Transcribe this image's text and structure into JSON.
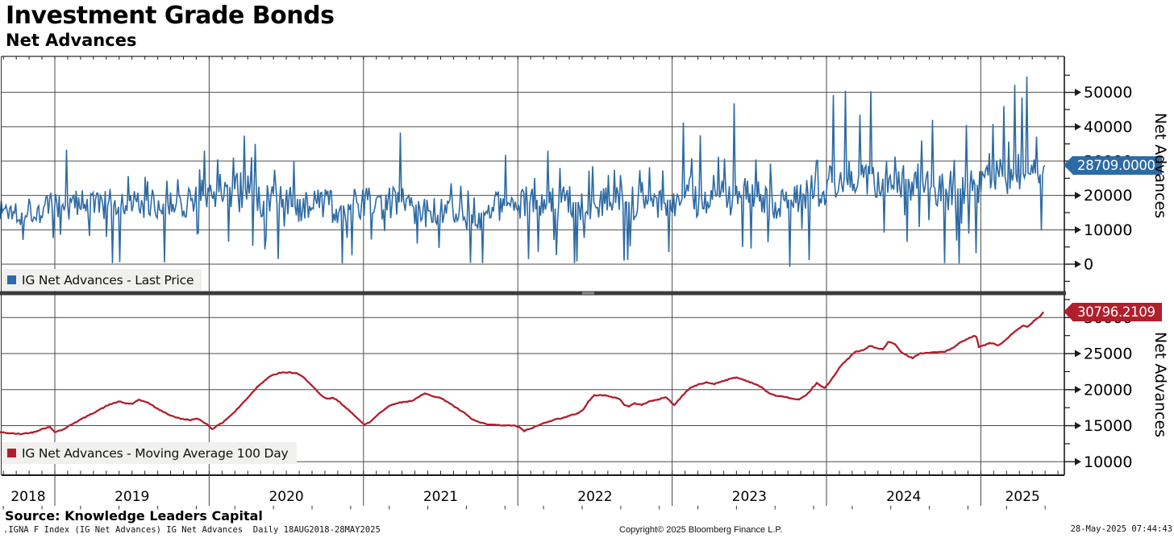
{
  "header": {
    "title": "Investment Grade Bonds",
    "subtitle": "Net Advances"
  },
  "footer": {
    "source": "Source: Knowledge Leaders Capital",
    "index_info": ".IGNA F Index (IG Net Advances) IG Net Advances  Daily 18AUG2018-28MAY2025",
    "copyright": "Copyright© 2025 Bloomberg Finance L.P.",
    "timestamp": "28-May-2025 07:44:43"
  },
  "colors": {
    "price": "#2d6ba5",
    "ma": "#b01f2c",
    "grid": "#4b4b4b",
    "axis": "#1a1a1a",
    "legend_bg": "#f0f0ee",
    "separator": "#3b3b3b",
    "handle": "#8a8a8a"
  },
  "x_axis": {
    "years": [
      "2018",
      "2019",
      "2020",
      "2021",
      "2022",
      "2023",
      "2024",
      "2025"
    ]
  },
  "chart_data": [
    {
      "type": "line",
      "panel": "top",
      "name": "IG Net Advances - Last Price",
      "legend": "IG Net Advances - Last Price",
      "axis_title": "Net Advances",
      "last_value": 28709.0,
      "last_label": "28709.0000",
      "ylim": [
        -7700,
        60500
      ],
      "y_major_ticks": [
        0,
        10000,
        20000,
        30000,
        40000,
        50000
      ],
      "y_major_labels": [
        "0",
        "10000",
        "20000",
        "30000",
        "40000",
        "50000"
      ],
      "y_minor_ticks": [
        -5000,
        5000,
        15000,
        25000,
        35000,
        45000,
        55000
      ],
      "seed": 1337,
      "envelope": [
        [
          0,
          15800,
          4200
        ],
        [
          30,
          15600,
          4600
        ],
        [
          68,
          16600,
          4600
        ],
        [
          85,
          17200,
          5600
        ],
        [
          120,
          17600,
          4600
        ],
        [
          150,
          16600,
          5200
        ],
        [
          185,
          17600,
          4200
        ],
        [
          215,
          17600,
          4600
        ],
        [
          240,
          18800,
          5200
        ],
        [
          262,
          20500,
          5600
        ],
        [
          285,
          21800,
          6200
        ],
        [
          308,
          21800,
          7600
        ],
        [
          330,
          19500,
          6200
        ],
        [
          352,
          16500,
          6000
        ],
        [
          385,
          17200,
          5200
        ],
        [
          415,
          16800,
          5200
        ],
        [
          452,
          17800,
          4600
        ],
        [
          497,
          18000,
          5200
        ],
        [
          522,
          15800,
          4800
        ],
        [
          548,
          14200,
          4800
        ],
        [
          575,
          14200,
          5200
        ],
        [
          603,
          15200,
          5200
        ],
        [
          628,
          17000,
          5600
        ],
        [
          660,
          17600,
          5600
        ],
        [
          690,
          17800,
          6000
        ],
        [
          730,
          18200,
          5200
        ],
        [
          765,
          17800,
          5600
        ],
        [
          800,
          18600,
          5600
        ],
        [
          835,
          18800,
          5200
        ],
        [
          855,
          19400,
          6200
        ],
        [
          880,
          19800,
          6400
        ],
        [
          915,
          20200,
          6200
        ],
        [
          945,
          19200,
          5600
        ],
        [
          980,
          18800,
          6000
        ],
        [
          1008,
          20800,
          5600
        ],
        [
          1025,
          22800,
          6200
        ],
        [
          1040,
          24200,
          6600
        ],
        [
          1055,
          25600,
          6200
        ],
        [
          1080,
          26200,
          6200
        ],
        [
          1097,
          24800,
          6200
        ],
        [
          1112,
          25600,
          5800
        ],
        [
          1128,
          24600,
          6000
        ],
        [
          1145,
          23600,
          5800
        ],
        [
          1160,
          22400,
          6000
        ],
        [
          1180,
          21600,
          6200
        ],
        [
          1205,
          22800,
          5800
        ],
        [
          1220,
          23600,
          5800
        ],
        [
          1238,
          25000,
          5600
        ],
        [
          1258,
          26200,
          6200
        ],
        [
          1275,
          26600,
          6200
        ],
        [
          1296,
          26000,
          6000
        ]
      ],
      "spikes": [
        [
          83,
          33300
        ],
        [
          140,
          300
        ],
        [
          148,
          600
        ],
        [
          204,
          500
        ],
        [
          253,
          33000
        ],
        [
          270,
          30500
        ],
        [
          290,
          31000
        ],
        [
          303,
          37400
        ],
        [
          317,
          35000
        ],
        [
          345,
          1500
        ],
        [
          365,
          30000
        ],
        [
          425,
          200
        ],
        [
          437,
          2600
        ],
        [
          497,
          38300
        ],
        [
          545,
          4700
        ],
        [
          583,
          400
        ],
        [
          598,
          300
        ],
        [
          627,
          31800
        ],
        [
          656,
          1500
        ],
        [
          680,
          33000
        ],
        [
          695,
          28000
        ],
        [
          712,
          300
        ],
        [
          716,
          800
        ],
        [
          735,
          28500
        ],
        [
          762,
          27500
        ],
        [
          774,
          1000
        ],
        [
          778,
          1200
        ],
        [
          805,
          28200
        ],
        [
          830,
          3500
        ],
        [
          848,
          41200
        ],
        [
          868,
          37500
        ],
        [
          911,
          46800
        ],
        [
          938,
          30500
        ],
        [
          980,
          -700
        ],
        [
          1004,
          1200
        ],
        [
          1034,
          49200
        ],
        [
          1049,
          50500
        ],
        [
          1066,
          43500
        ],
        [
          1080,
          50300
        ],
        [
          1096,
          9200
        ],
        [
          1125,
          6500
        ],
        [
          1143,
          36000
        ],
        [
          1157,
          42000
        ],
        [
          1172,
          300
        ],
        [
          1189,
          200
        ],
        [
          1199,
          40500
        ],
        [
          1211,
          3200
        ],
        [
          1232,
          40800
        ],
        [
          1245,
          46000
        ],
        [
          1259,
          52200
        ],
        [
          1268,
          48500
        ],
        [
          1274,
          54600
        ],
        [
          1283,
          30500
        ],
        [
          1291,
          9800
        ]
      ]
    },
    {
      "type": "line",
      "panel": "bottom",
      "name": "IG Net Advances - Moving Average 100 Day",
      "legend": "IG Net Advances - Moving Average 100 Day",
      "axis_title": "Net Advances",
      "last_value": 30796.2109,
      "last_label": "30796.2109",
      "ylim": [
        8100,
        33000
      ],
      "y_major_ticks": [
        10000,
        15000,
        20000,
        25000,
        30000
      ],
      "y_major_labels": [
        "10000",
        "15000",
        "20000",
        "25000",
        "30000"
      ],
      "y_minor_ticks": [
        12500,
        17500,
        22500,
        27500,
        32500
      ],
      "seed": 42,
      "points": [
        [
          0,
          14100
        ],
        [
          12,
          13950
        ],
        [
          25,
          13850
        ],
        [
          40,
          14050
        ],
        [
          55,
          14650
        ],
        [
          62,
          14800
        ],
        [
          68,
          14150
        ],
        [
          78,
          14450
        ],
        [
          92,
          15400
        ],
        [
          108,
          16300
        ],
        [
          122,
          17150
        ],
        [
          136,
          17950
        ],
        [
          148,
          18350
        ],
        [
          156,
          18100
        ],
        [
          164,
          18050
        ],
        [
          172,
          18550
        ],
        [
          182,
          18300
        ],
        [
          196,
          17300
        ],
        [
          210,
          16500
        ],
        [
          224,
          15950
        ],
        [
          236,
          15800
        ],
        [
          246,
          15950
        ],
        [
          256,
          15250
        ],
        [
          263,
          14550
        ],
        [
          275,
          15350
        ],
        [
          290,
          16800
        ],
        [
          305,
          18600
        ],
        [
          320,
          20500
        ],
        [
          334,
          21800
        ],
        [
          346,
          22300
        ],
        [
          358,
          22400
        ],
        [
          368,
          22250
        ],
        [
          378,
          21600
        ],
        [
          388,
          20400
        ],
        [
          398,
          19200
        ],
        [
          406,
          18700
        ],
        [
          413,
          18850
        ],
        [
          421,
          18350
        ],
        [
          429,
          17450
        ],
        [
          437,
          16700
        ],
        [
          445,
          15900
        ],
        [
          452,
          15100
        ],
        [
          460,
          15600
        ],
        [
          470,
          16700
        ],
        [
          482,
          17700
        ],
        [
          492,
          18150
        ],
        [
          502,
          18300
        ],
        [
          512,
          18500
        ],
        [
          520,
          19050
        ],
        [
          527,
          19450
        ],
        [
          536,
          19150
        ],
        [
          546,
          18850
        ],
        [
          556,
          18250
        ],
        [
          566,
          17450
        ],
        [
          576,
          16750
        ],
        [
          586,
          15850
        ],
        [
          596,
          15400
        ],
        [
          606,
          15150
        ],
        [
          616,
          15100
        ],
        [
          626,
          15000
        ],
        [
          636,
          15050
        ],
        [
          643,
          14850
        ],
        [
          650,
          14250
        ],
        [
          658,
          14600
        ],
        [
          668,
          15050
        ],
        [
          680,
          15600
        ],
        [
          692,
          15950
        ],
        [
          702,
          16200
        ],
        [
          710,
          16500
        ],
        [
          717,
          16750
        ],
        [
          724,
          17300
        ],
        [
          730,
          18400
        ],
        [
          737,
          19200
        ],
        [
          744,
          19300
        ],
        [
          752,
          19150
        ],
        [
          760,
          18950
        ],
        [
          768,
          18750
        ],
        [
          774,
          17950
        ],
        [
          780,
          17650
        ],
        [
          787,
          18100
        ],
        [
          796,
          17900
        ],
        [
          806,
          18400
        ],
        [
          816,
          18600
        ],
        [
          826,
          19000
        ],
        [
          831,
          18400
        ],
        [
          836,
          17850
        ],
        [
          842,
          18600
        ],
        [
          849,
          19500
        ],
        [
          856,
          20250
        ],
        [
          866,
          20700
        ],
        [
          876,
          21000
        ],
        [
          886,
          20800
        ],
        [
          896,
          21200
        ],
        [
          906,
          21500
        ],
        [
          913,
          21700
        ],
        [
          924,
          21300
        ],
        [
          934,
          20900
        ],
        [
          944,
          20350
        ],
        [
          954,
          19500
        ],
        [
          964,
          19100
        ],
        [
          974,
          19000
        ],
        [
          984,
          18700
        ],
        [
          991,
          18600
        ],
        [
          1000,
          19200
        ],
        [
          1008,
          20300
        ],
        [
          1013,
          20900
        ],
        [
          1018,
          20500
        ],
        [
          1023,
          20200
        ],
        [
          1033,
          21700
        ],
        [
          1042,
          23200
        ],
        [
          1051,
          24200
        ],
        [
          1060,
          25200
        ],
        [
          1070,
          25450
        ],
        [
          1080,
          26100
        ],
        [
          1088,
          25700
        ],
        [
          1095,
          25600
        ],
        [
          1102,
          26650
        ],
        [
          1110,
          26300
        ],
        [
          1116,
          25400
        ],
        [
          1124,
          24800
        ],
        [
          1132,
          24400
        ],
        [
          1140,
          25000
        ],
        [
          1150,
          25100
        ],
        [
          1162,
          25200
        ],
        [
          1172,
          25300
        ],
        [
          1181,
          25700
        ],
        [
          1189,
          26400
        ],
        [
          1198,
          26900
        ],
        [
          1207,
          27450
        ],
        [
          1211,
          27300
        ],
        [
          1214,
          25950
        ],
        [
          1220,
          26100
        ],
        [
          1227,
          26450
        ],
        [
          1233,
          26400
        ],
        [
          1238,
          26100
        ],
        [
          1244,
          26600
        ],
        [
          1250,
          27200
        ],
        [
          1257,
          27900
        ],
        [
          1263,
          28400
        ],
        [
          1269,
          28900
        ],
        [
          1274,
          28700
        ],
        [
          1280,
          29300
        ],
        [
          1286,
          29900
        ],
        [
          1291,
          30300
        ],
        [
          1294,
          30796
        ]
      ]
    }
  ]
}
